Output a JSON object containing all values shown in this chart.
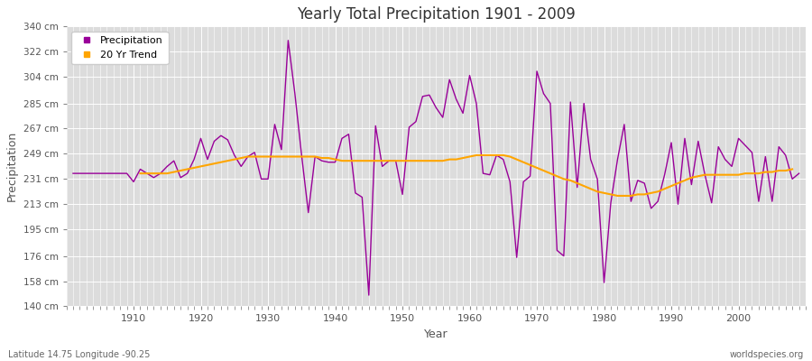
{
  "title": "Yearly Total Precipitation 1901 - 2009",
  "xlabel": "Year",
  "ylabel": "Precipitation",
  "subtitle_left": "Latitude 14.75 Longitude -90.25",
  "subtitle_right": "worldspecies.org",
  "ylim": [
    140,
    340
  ],
  "yticks": [
    140,
    158,
    176,
    195,
    213,
    231,
    249,
    267,
    285,
    304,
    322,
    340
  ],
  "ytick_labels": [
    "140 cm",
    "158 cm",
    "176 cm",
    "195 cm",
    "213 cm",
    "231 cm",
    "249 cm",
    "267 cm",
    "285 cm",
    "304 cm",
    "322 cm",
    "340 cm"
  ],
  "xlim": [
    1900,
    2010
  ],
  "xticks": [
    1910,
    1920,
    1930,
    1940,
    1950,
    1960,
    1970,
    1980,
    1990,
    2000
  ],
  "precipitation_color": "#990099",
  "trend_color": "#FFA500",
  "fig_bg_color": "#FFFFFF",
  "plot_bg_color": "#DCDCDC",
  "grid_color": "#FFFFFF",
  "legend_labels": [
    "Precipitation",
    "20 Yr Trend"
  ],
  "years": [
    1901,
    1902,
    1903,
    1904,
    1905,
    1906,
    1907,
    1908,
    1909,
    1910,
    1911,
    1912,
    1913,
    1914,
    1915,
    1916,
    1917,
    1918,
    1919,
    1920,
    1921,
    1922,
    1923,
    1924,
    1925,
    1926,
    1927,
    1928,
    1929,
    1930,
    1931,
    1932,
    1933,
    1934,
    1935,
    1936,
    1937,
    1938,
    1939,
    1940,
    1941,
    1942,
    1943,
    1944,
    1945,
    1946,
    1947,
    1948,
    1949,
    1950,
    1951,
    1952,
    1953,
    1954,
    1955,
    1956,
    1957,
    1958,
    1959,
    1960,
    1961,
    1962,
    1963,
    1964,
    1965,
    1966,
    1967,
    1968,
    1969,
    1970,
    1971,
    1972,
    1973,
    1974,
    1975,
    1976,
    1977,
    1978,
    1979,
    1980,
    1981,
    1982,
    1983,
    1984,
    1985,
    1986,
    1987,
    1988,
    1989,
    1990,
    1991,
    1992,
    1993,
    1994,
    1995,
    1996,
    1997,
    1998,
    1999,
    2000,
    2001,
    2002,
    2003,
    2004,
    2005,
    2006,
    2007,
    2008,
    2009
  ],
  "precip_values": [
    235,
    235,
    235,
    235,
    235,
    235,
    235,
    235,
    235,
    229,
    238,
    235,
    232,
    235,
    240,
    244,
    232,
    235,
    245,
    260,
    245,
    258,
    262,
    259,
    248,
    240,
    247,
    250,
    231,
    231,
    270,
    252,
    330,
    292,
    248,
    207,
    247,
    244,
    243,
    243,
    260,
    263,
    221,
    218,
    148,
    269,
    240,
    244,
    244,
    220,
    268,
    272,
    290,
    291,
    282,
    275,
    302,
    288,
    278,
    305,
    285,
    235,
    234,
    248,
    245,
    229,
    175,
    229,
    233,
    308,
    292,
    285,
    180,
    176,
    286,
    225,
    285,
    245,
    231,
    157,
    214,
    245,
    270,
    215,
    230,
    228,
    210,
    215,
    234,
    257,
    213,
    260,
    227,
    258,
    234,
    214,
    254,
    245,
    240,
    260,
    255,
    250,
    215,
    247,
    215,
    254,
    248,
    231,
    235
  ],
  "trend_values": [
    null,
    null,
    null,
    null,
    null,
    null,
    null,
    null,
    null,
    null,
    235,
    235,
    235,
    235,
    235,
    236,
    237,
    238,
    239,
    240,
    241,
    242,
    243,
    244,
    245,
    246,
    247,
    247,
    247,
    247,
    247,
    247,
    247,
    247,
    247,
    247,
    247,
    246,
    246,
    245,
    244,
    244,
    244,
    244,
    244,
    244,
    244,
    244,
    244,
    244,
    244,
    244,
    244,
    244,
    244,
    244,
    245,
    245,
    246,
    247,
    248,
    248,
    248,
    248,
    248,
    247,
    245,
    243,
    241,
    239,
    237,
    235,
    233,
    231,
    230,
    228,
    226,
    224,
    222,
    221,
    220,
    219,
    219,
    219,
    220,
    220,
    221,
    222,
    224,
    226,
    228,
    230,
    232,
    233,
    234,
    234,
    234,
    234,
    234,
    234,
    235,
    235,
    235,
    236,
    236,
    237,
    237,
    238,
    null
  ]
}
